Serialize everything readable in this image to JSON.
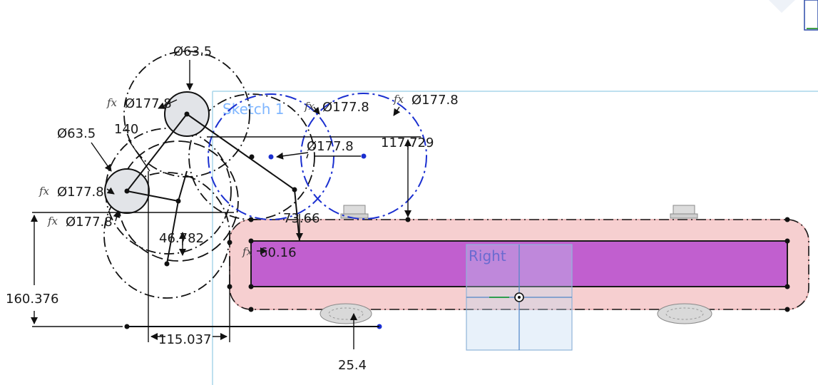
{
  "sketch": {
    "name": "Sketch 1"
  },
  "plane": {
    "name": "Right"
  },
  "dimensions": {
    "top_circle_dia": "Ø63.5",
    "left_circle_dia": "Ø63.5",
    "fx_dia_1": "Ø177.8",
    "fx_dia_2": "Ø177.8",
    "fx_dia_3": "Ø177.8",
    "fx_dia_4": "Ø177.8",
    "fx_dia_5": "Ø177.8",
    "dia_plain": "Ø177.8",
    "len_140": "140",
    "len_117": "117.729",
    "len_73": "73.66",
    "len_46": "46.782",
    "len_60": "60.16",
    "len_160": "160.376",
    "len_115": "115.037",
    "len_25": "25.4"
  },
  "fx_symbol": "fx",
  "colors": {
    "body_pink": "#f6cfd0",
    "inner_purple": "#c15fcf",
    "sketch_blue": "#1a2fd0",
    "plane_blue": "#8fb3d9"
  }
}
